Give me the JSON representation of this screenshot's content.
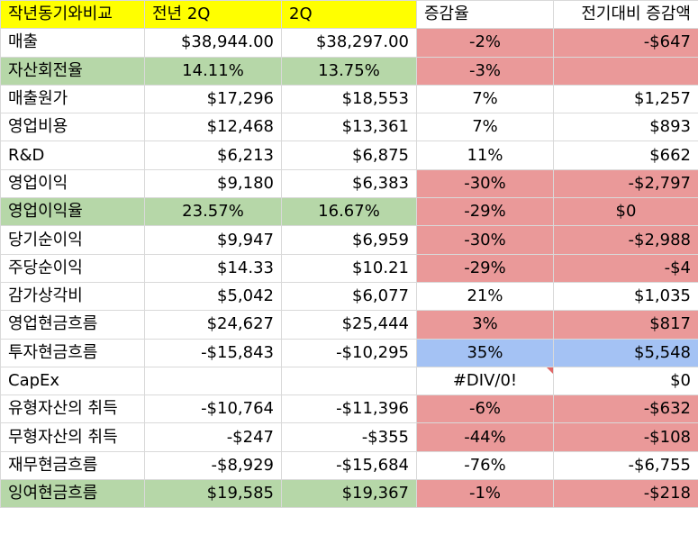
{
  "colors": {
    "header": "#ffff00",
    "green": "#b6d7a8",
    "red": "#ea9999",
    "blue": "#a4c2f4",
    "white": "#ffffff",
    "comment_marker": "#e06666"
  },
  "table": {
    "rows": [
      {
        "cells": [
          {
            "text": "작년동기와비교",
            "align": "left",
            "bg": "yellow"
          },
          {
            "text": "전년 2Q",
            "align": "left",
            "bg": "yellow"
          },
          {
            "text": "2Q",
            "align": "left",
            "bg": "yellow"
          },
          {
            "text": "증감율",
            "align": "left",
            "bg": "white"
          },
          {
            "text": "전기대비 증감액",
            "align": "right",
            "bg": "white"
          }
        ]
      },
      {
        "cells": [
          {
            "text": "매출",
            "align": "left",
            "bg": "white"
          },
          {
            "text": "$38,944.00",
            "align": "right",
            "bg": "white"
          },
          {
            "text": "$38,297.00",
            "align": "right",
            "bg": "white"
          },
          {
            "text": "-2%",
            "align": "center",
            "bg": "red"
          },
          {
            "text": "-$647",
            "align": "right",
            "bg": "red"
          }
        ]
      },
      {
        "cells": [
          {
            "text": "자산회전율",
            "align": "left",
            "bg": "green"
          },
          {
            "text": "14.11%",
            "align": "center",
            "bg": "green"
          },
          {
            "text": "13.75%",
            "align": "center",
            "bg": "green"
          },
          {
            "text": "-3%",
            "align": "center",
            "bg": "red"
          },
          {
            "text": "",
            "align": "right",
            "bg": "red"
          }
        ]
      },
      {
        "cells": [
          {
            "text": "매출원가",
            "align": "left",
            "bg": "white"
          },
          {
            "text": "$17,296",
            "align": "right",
            "bg": "white"
          },
          {
            "text": "$18,553",
            "align": "right",
            "bg": "white"
          },
          {
            "text": "7%",
            "align": "center",
            "bg": "white"
          },
          {
            "text": "$1,257",
            "align": "right",
            "bg": "white"
          }
        ]
      },
      {
        "cells": [
          {
            "text": "영업비용",
            "align": "left",
            "bg": "white"
          },
          {
            "text": "$12,468",
            "align": "right",
            "bg": "white"
          },
          {
            "text": "$13,361",
            "align": "right",
            "bg": "white"
          },
          {
            "text": "7%",
            "align": "center",
            "bg": "white"
          },
          {
            "text": "$893",
            "align": "right",
            "bg": "white"
          }
        ]
      },
      {
        "cells": [
          {
            "text": "R&D",
            "align": "left",
            "bg": "white"
          },
          {
            "text": "$6,213",
            "align": "right",
            "bg": "white"
          },
          {
            "text": "$6,875",
            "align": "right",
            "bg": "white"
          },
          {
            "text": "11%",
            "align": "center",
            "bg": "white"
          },
          {
            "text": "$662",
            "align": "right",
            "bg": "white"
          }
        ]
      },
      {
        "cells": [
          {
            "text": "영업이익",
            "align": "left",
            "bg": "white"
          },
          {
            "text": "$9,180",
            "align": "right",
            "bg": "white"
          },
          {
            "text": "$6,383",
            "align": "right",
            "bg": "white"
          },
          {
            "text": "-30%",
            "align": "center",
            "bg": "red"
          },
          {
            "text": "-$2,797",
            "align": "right",
            "bg": "red"
          }
        ]
      },
      {
        "cells": [
          {
            "text": "영업이익율",
            "align": "left",
            "bg": "green"
          },
          {
            "text": "23.57%",
            "align": "center",
            "bg": "green"
          },
          {
            "text": "16.67%",
            "align": "center",
            "bg": "green"
          },
          {
            "text": "-29%",
            "align": "center",
            "bg": "red"
          },
          {
            "text": "$0",
            "align": "center",
            "bg": "red"
          }
        ]
      },
      {
        "cells": [
          {
            "text": "당기순이익",
            "align": "left",
            "bg": "white"
          },
          {
            "text": "$9,947",
            "align": "right",
            "bg": "white"
          },
          {
            "text": "$6,959",
            "align": "right",
            "bg": "white"
          },
          {
            "text": "-30%",
            "align": "center",
            "bg": "red"
          },
          {
            "text": "-$2,988",
            "align": "right",
            "bg": "red"
          }
        ]
      },
      {
        "cells": [
          {
            "text": "주당순이익",
            "align": "left",
            "bg": "white"
          },
          {
            "text": "$14.33",
            "align": "right",
            "bg": "white"
          },
          {
            "text": "$10.21",
            "align": "right",
            "bg": "white"
          },
          {
            "text": "-29%",
            "align": "center",
            "bg": "red"
          },
          {
            "text": "-$4",
            "align": "right",
            "bg": "red"
          }
        ]
      },
      {
        "cells": [
          {
            "text": "감가상각비",
            "align": "left",
            "bg": "white"
          },
          {
            "text": "$5,042",
            "align": "right",
            "bg": "white"
          },
          {
            "text": "$6,077",
            "align": "right",
            "bg": "white"
          },
          {
            "text": "21%",
            "align": "center",
            "bg": "white"
          },
          {
            "text": "$1,035",
            "align": "right",
            "bg": "white"
          }
        ]
      },
      {
        "cells": [
          {
            "text": "영업현금흐름",
            "align": "left",
            "bg": "white"
          },
          {
            "text": "$24,627",
            "align": "right",
            "bg": "white"
          },
          {
            "text": "$25,444",
            "align": "right",
            "bg": "white"
          },
          {
            "text": "3%",
            "align": "center",
            "bg": "red"
          },
          {
            "text": "$817",
            "align": "right",
            "bg": "red"
          }
        ]
      },
      {
        "cells": [
          {
            "text": "투자현금흐름",
            "align": "left",
            "bg": "white"
          },
          {
            "text": "-$15,843",
            "align": "right",
            "bg": "white"
          },
          {
            "text": "-$10,295",
            "align": "right",
            "bg": "white"
          },
          {
            "text": "35%",
            "align": "center",
            "bg": "blue"
          },
          {
            "text": "$5,548",
            "align": "right",
            "bg": "blue"
          }
        ]
      },
      {
        "cells": [
          {
            "text": "CapEx",
            "align": "left",
            "bg": "white"
          },
          {
            "text": "",
            "align": "right",
            "bg": "white"
          },
          {
            "text": "",
            "align": "right",
            "bg": "white"
          },
          {
            "text": "#DIV/0!",
            "align": "center",
            "bg": "white",
            "comment": true
          },
          {
            "text": "$0",
            "align": "right",
            "bg": "white"
          }
        ]
      },
      {
        "cells": [
          {
            "text": "유형자산의 취득",
            "align": "left",
            "bg": "white"
          },
          {
            "text": "-$10,764",
            "align": "right",
            "bg": "white"
          },
          {
            "text": "-$11,396",
            "align": "right",
            "bg": "white"
          },
          {
            "text": "-6%",
            "align": "center",
            "bg": "red"
          },
          {
            "text": "-$632",
            "align": "right",
            "bg": "red"
          }
        ]
      },
      {
        "cells": [
          {
            "text": "무형자산의 취득",
            "align": "left",
            "bg": "white"
          },
          {
            "text": "-$247",
            "align": "right",
            "bg": "white"
          },
          {
            "text": "-$355",
            "align": "right",
            "bg": "white"
          },
          {
            "text": "-44%",
            "align": "center",
            "bg": "red"
          },
          {
            "text": "-$108",
            "align": "right",
            "bg": "red"
          }
        ]
      },
      {
        "cells": [
          {
            "text": "재무현금흐름",
            "align": "left",
            "bg": "white"
          },
          {
            "text": "-$8,929",
            "align": "right",
            "bg": "white"
          },
          {
            "text": "-$15,684",
            "align": "right",
            "bg": "white"
          },
          {
            "text": "-76%",
            "align": "center",
            "bg": "white"
          },
          {
            "text": "-$6,755",
            "align": "right",
            "bg": "white"
          }
        ]
      },
      {
        "cells": [
          {
            "text": "잉여현금흐름",
            "align": "left",
            "bg": "green"
          },
          {
            "text": "$19,585",
            "align": "right",
            "bg": "green"
          },
          {
            "text": "$19,367",
            "align": "right",
            "bg": "green"
          },
          {
            "text": "-1%",
            "align": "center",
            "bg": "red"
          },
          {
            "text": "-$218",
            "align": "right",
            "bg": "red"
          }
        ]
      }
    ]
  }
}
